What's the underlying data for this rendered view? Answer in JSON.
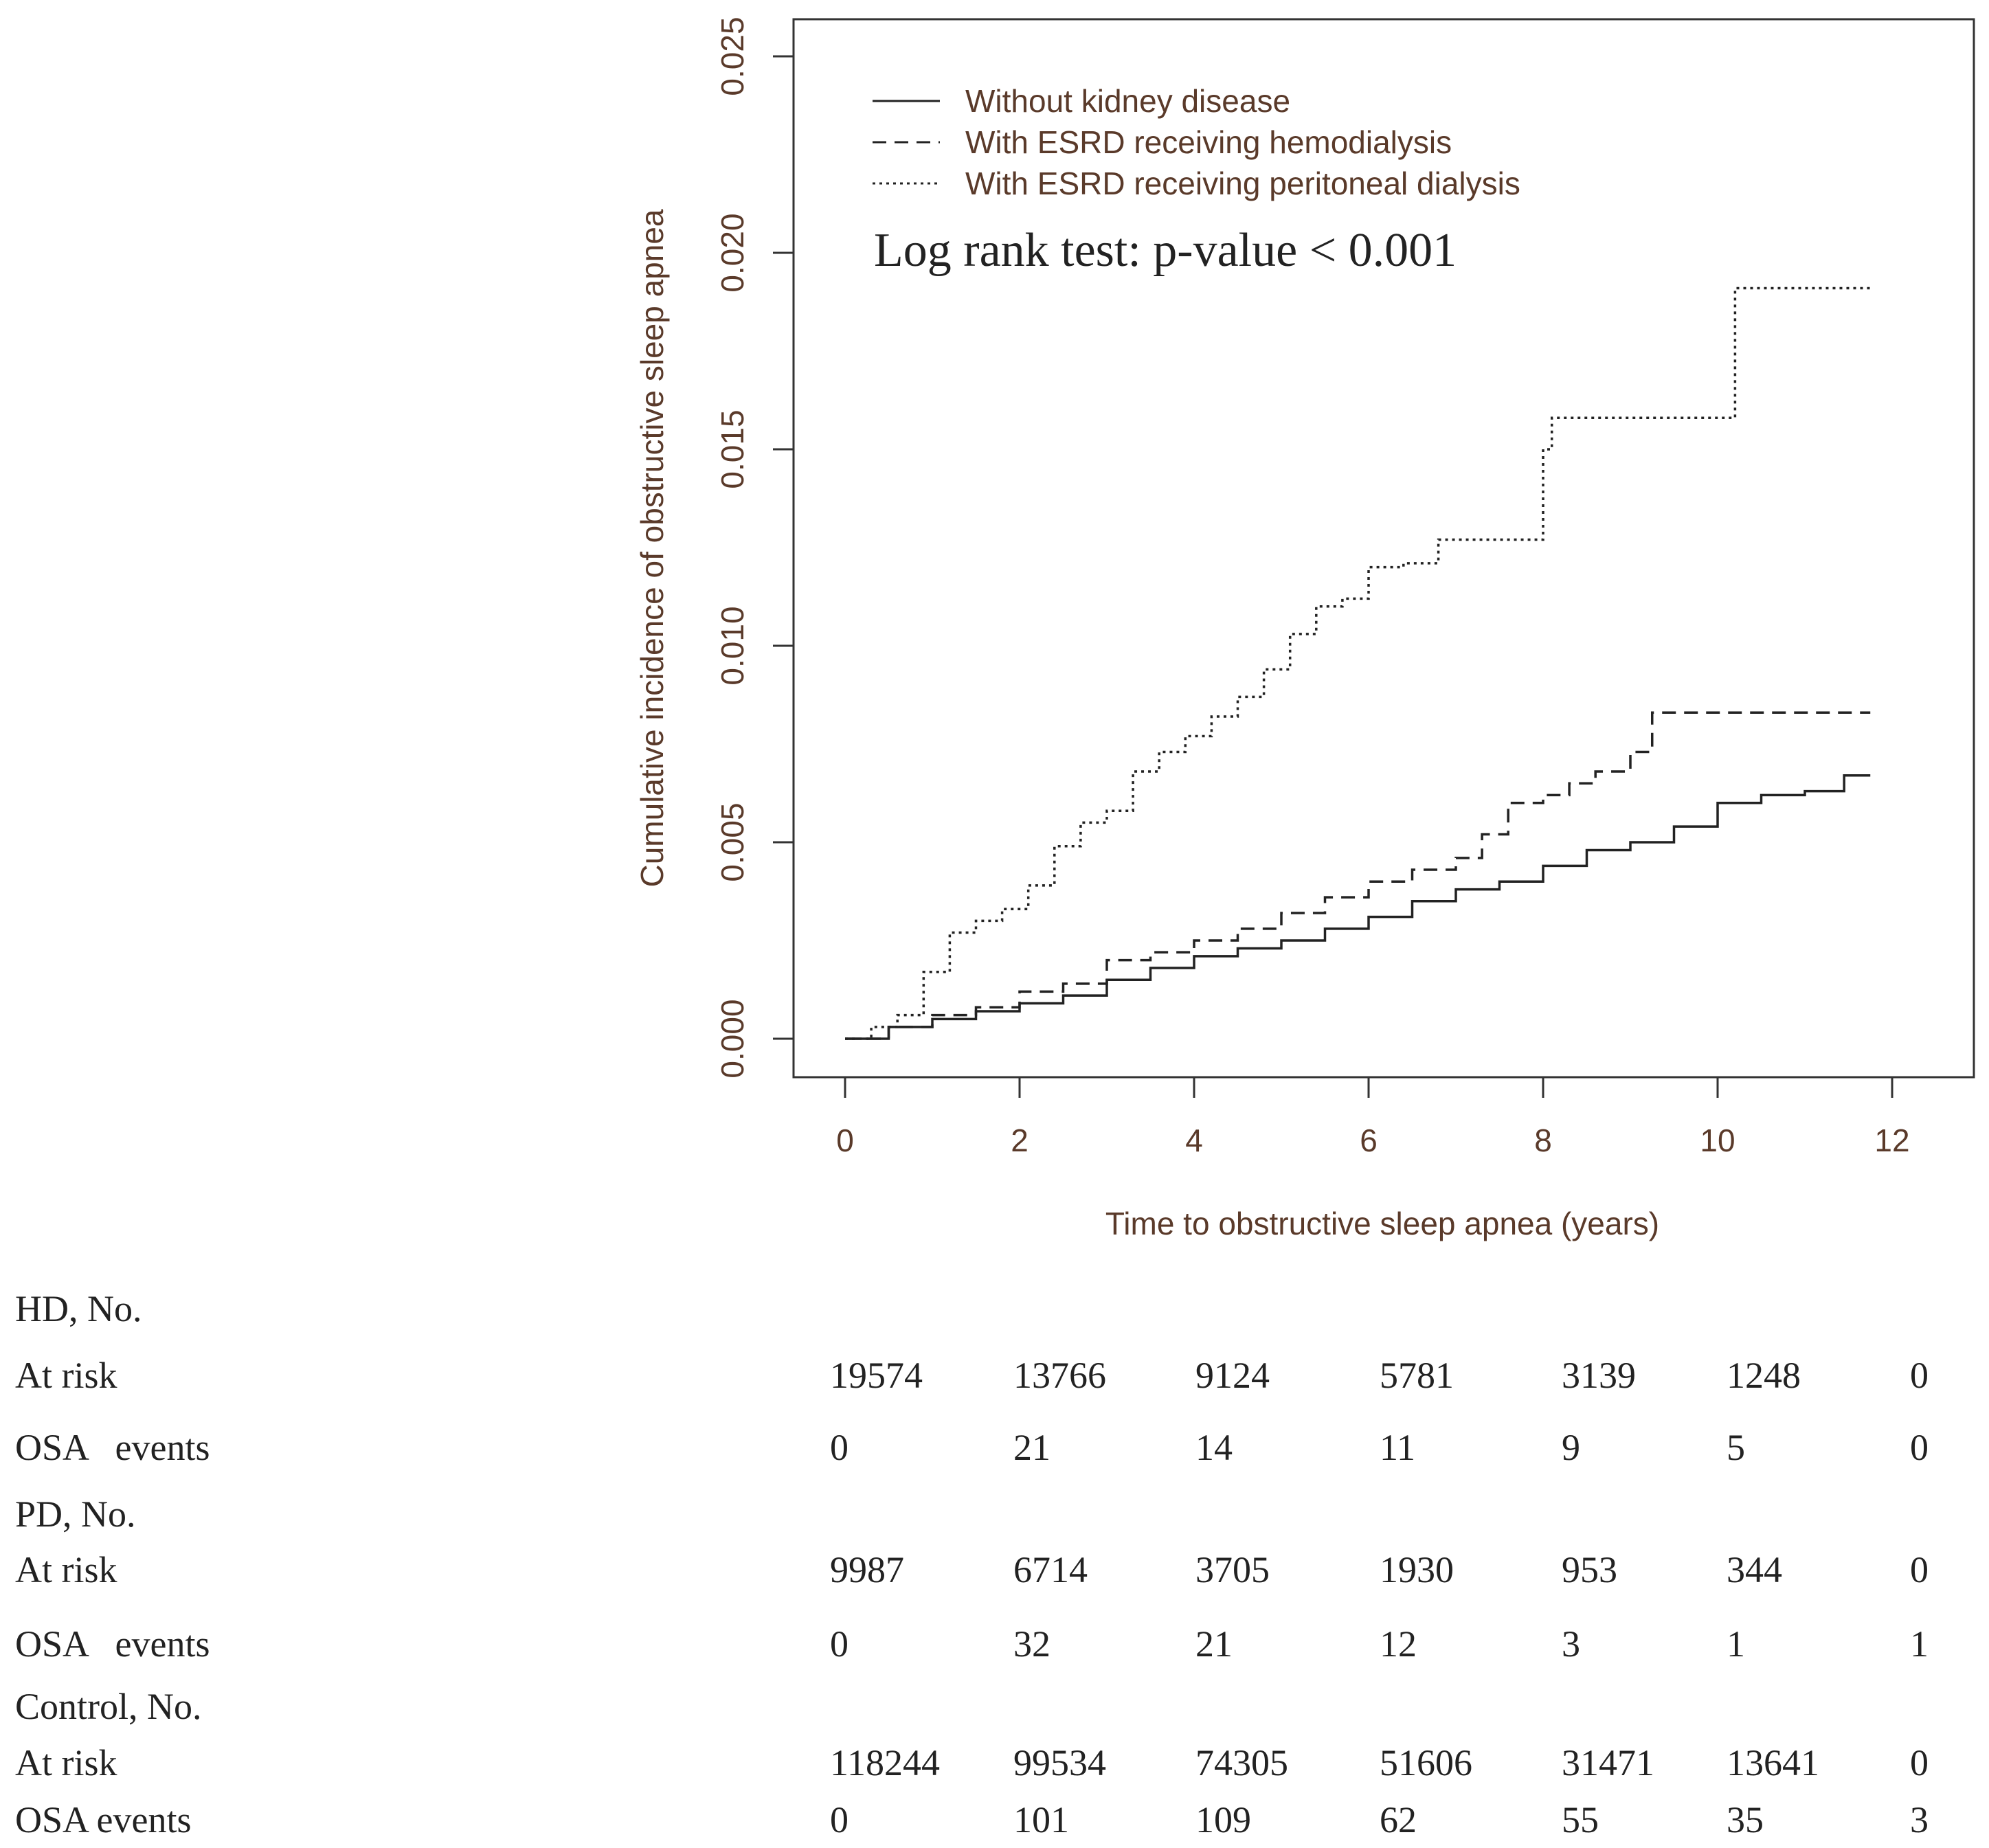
{
  "chart_data": {
    "type": "line",
    "step": true,
    "title": "",
    "xlabel": "Time to obstructive sleep apnea (years)",
    "ylabel": "Cumulative incidence of obstructive sleep apnea",
    "xlim": [
      -0.6,
      13
    ],
    "ylim": [
      -0.001,
      0.026
    ],
    "x_ticks": [
      0,
      2,
      4,
      6,
      8,
      10,
      12
    ],
    "x_tick_labels": [
      "0",
      "2",
      "4",
      "6",
      "8",
      "10",
      "12"
    ],
    "y_ticks": [
      0.0,
      0.005,
      0.01,
      0.015,
      0.02,
      0.025
    ],
    "y_tick_labels": [
      "0.000",
      "0.005",
      "0.010",
      "0.015",
      "0.020",
      "0.025"
    ],
    "legend_position": "top-left",
    "annotation": "Log rank test: p-value < 0.001",
    "series": [
      {
        "name": "Without kidney disease",
        "style": "solid",
        "x": [
          0,
          0.5,
          1,
          1.5,
          2,
          2.5,
          3,
          3.5,
          4,
          4.5,
          5,
          5.5,
          6,
          6.5,
          7,
          7.5,
          8,
          8.5,
          9,
          9.5,
          10,
          10.5,
          11,
          11.45,
          11.75
        ],
        "y": [
          0,
          0.0003,
          0.0005,
          0.0007,
          0.0009,
          0.0011,
          0.0015,
          0.0018,
          0.0021,
          0.0023,
          0.0025,
          0.0028,
          0.0031,
          0.0035,
          0.0038,
          0.004,
          0.0044,
          0.0048,
          0.005,
          0.0054,
          0.006,
          0.0062,
          0.0063,
          0.0067,
          0.0067
        ]
      },
      {
        "name": "With ESRD receiving hemodialysis",
        "style": "dashed",
        "x": [
          0,
          0.5,
          1,
          1.5,
          2,
          2.5,
          3,
          3.5,
          4,
          4.5,
          5,
          5.5,
          6,
          6.5,
          7,
          7.3,
          7.6,
          8,
          8.3,
          8.6,
          9,
          9.25,
          10,
          11,
          11.75
        ],
        "y": [
          0,
          0.0003,
          0.0006,
          0.0008,
          0.0012,
          0.0014,
          0.002,
          0.0022,
          0.0025,
          0.0028,
          0.0032,
          0.0036,
          0.004,
          0.0043,
          0.0046,
          0.0052,
          0.006,
          0.0062,
          0.0065,
          0.0068,
          0.0073,
          0.0083,
          0.0083,
          0.0083,
          0.0083
        ]
      },
      {
        "name": "With ESRD receiving peritoneal dialysis",
        "style": "dotted",
        "x": [
          0,
          0.3,
          0.6,
          0.9,
          1.2,
          1.5,
          1.8,
          2.1,
          2.4,
          2.7,
          3,
          3.3,
          3.6,
          3.9,
          4.2,
          4.5,
          4.8,
          5.1,
          5.4,
          5.7,
          6,
          6.4,
          6.8,
          7.2,
          7.6,
          8,
          8.1,
          8.5,
          9,
          9.5,
          10.1,
          10.2,
          11.75
        ],
        "y": [
          0,
          0.0003,
          0.0006,
          0.0017,
          0.0027,
          0.003,
          0.0033,
          0.0039,
          0.0049,
          0.0055,
          0.0058,
          0.0068,
          0.0073,
          0.0077,
          0.0082,
          0.0087,
          0.0094,
          0.0103,
          0.011,
          0.0112,
          0.012,
          0.0121,
          0.0127,
          0.0127,
          0.0127,
          0.015,
          0.0158,
          0.0158,
          0.0158,
          0.0158,
          0.0158,
          0.0191,
          0.0191
        ]
      }
    ]
  },
  "risk_table": {
    "groups": [
      {
        "title": "HD, No.",
        "rows": [
          {
            "label": "At risk",
            "values": [
              "19574",
              "13766",
              "9124",
              "5781",
              "3139",
              "1248",
              "0"
            ]
          },
          {
            "label": "OSA   events",
            "values": [
              "0",
              "21",
              "14",
              "11",
              "9",
              "5",
              "0"
            ]
          }
        ]
      },
      {
        "title": "PD, No.",
        "rows": [
          {
            "label": "At risk",
            "values": [
              "9987",
              "6714",
              "3705",
              "1930",
              "953",
              "344",
              "0"
            ]
          },
          {
            "label": "OSA   events",
            "values": [
              "0",
              "32",
              "21",
              "12",
              "3",
              "1",
              "1"
            ]
          }
        ]
      },
      {
        "title": "Control, No.",
        "rows": [
          {
            "label": "At risk",
            "values": [
              "118244",
              "99534",
              "74305",
              "51606",
              "31471",
              "13641",
              "0"
            ]
          },
          {
            "label": "OSA events",
            "values": [
              "0",
              "101",
              "109",
              "62",
              "55",
              "35",
              "3"
            ]
          }
        ]
      }
    ]
  }
}
